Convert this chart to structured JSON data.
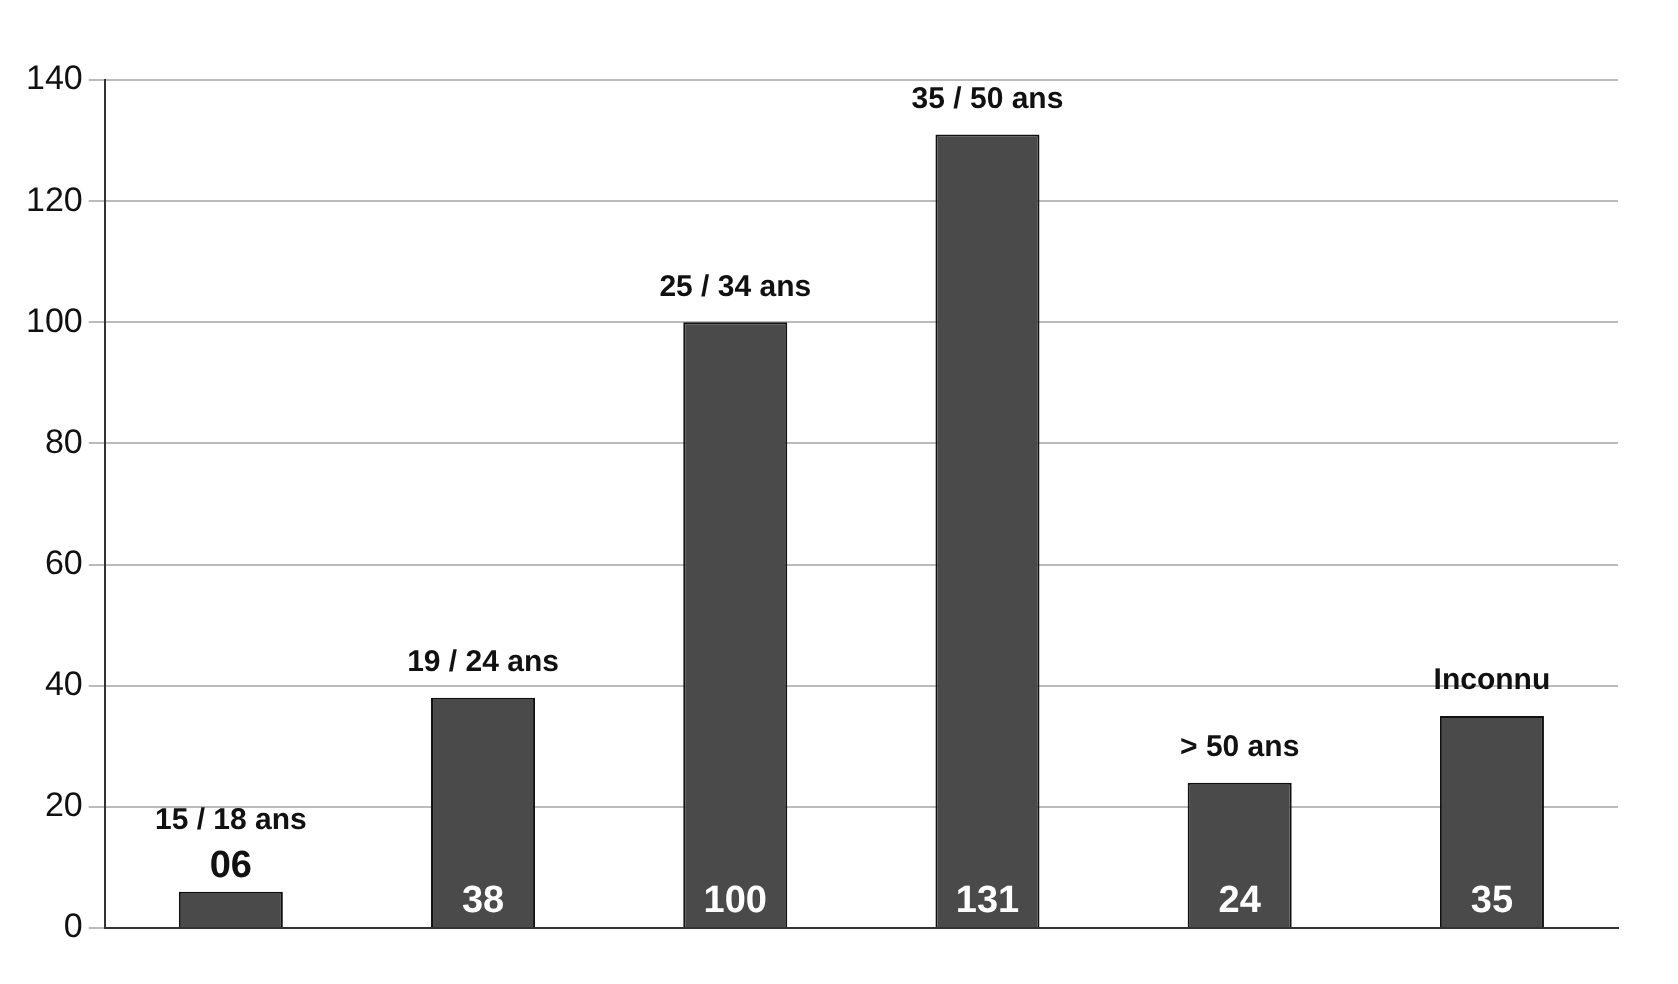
{
  "chart_data": {
    "type": "bar",
    "categories": [
      "15 / 18 ans",
      "19 / 24 ans",
      "25 / 34 ans",
      "35 / 50 ans",
      "> 50 ans",
      "Inconnu"
    ],
    "values": [
      6,
      38,
      100,
      131,
      24,
      35
    ],
    "value_labels": [
      "06",
      "38",
      "100",
      "131",
      "24",
      "35"
    ],
    "color": "#4a4a4a",
    "ylim": [
      0,
      140
    ],
    "yticks": [
      0,
      20,
      40,
      60,
      80,
      100,
      120,
      140
    ],
    "grid": "y",
    "legend": false
  }
}
